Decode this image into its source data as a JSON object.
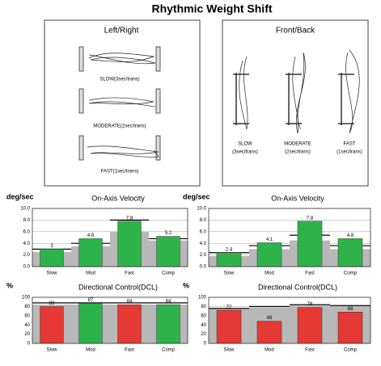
{
  "title": "Rhythmic Weight Shift",
  "panels": [
    {
      "title": "Left/Right",
      "labels": [
        "SLOW(3sec/trans)",
        "MODERATE(2sec/trans)",
        "FAST(1sec/trans)"
      ]
    },
    {
      "title": "Front/Back",
      "labels": [
        [
          "SLOW",
          "(3sec/trans)"
        ],
        [
          "MODERATE",
          "(2sec/trans)"
        ],
        [
          "FAST",
          "(1sec/trans)"
        ]
      ]
    }
  ],
  "chart_data": [
    {
      "type": "bar",
      "title": "On-Axis Velocity",
      "unit": "deg/sec",
      "categories": [
        "Slow",
        "Mod",
        "Fast",
        "Comp"
      ],
      "values": [
        3,
        4.8,
        7.8,
        5.2
      ],
      "colors": [
        "#2db34a",
        "#2db34a",
        "#2db34a",
        "#2db34a"
      ],
      "shaded": [
        2.5,
        3.5,
        6,
        4.5
      ],
      "outline": [
        3,
        4,
        8,
        4.8
      ],
      "ylim": [
        0,
        10
      ],
      "yticks": [
        {
          "value": 0,
          "label": "0.0"
        },
        {
          "value": 2,
          "label": "2.0"
        },
        {
          "value": 4,
          "label": "4.0"
        },
        {
          "value": 6,
          "label": "6.0"
        },
        {
          "value": 8,
          "label": "8.0"
        },
        {
          "value": 10,
          "label": "10.0"
        }
      ]
    },
    {
      "type": "bar",
      "title": "On-Axis Velocity",
      "unit": "deg/sec",
      "categories": [
        "Slow",
        "Mod",
        "Fast",
        "Comp"
      ],
      "values": [
        2.4,
        4.1,
        7.8,
        4.8
      ],
      "colors": [
        "#2db34a",
        "#2db34a",
        "#2db34a",
        "#2db34a"
      ],
      "shaded": [
        1.8,
        3,
        4.5,
        3
      ],
      "outline": [
        2.4,
        3.6,
        5.4,
        3.6
      ],
      "ylim": [
        0,
        10
      ],
      "yticks": [
        {
          "value": 0,
          "label": "0.0"
        },
        {
          "value": 2,
          "label": "2.0"
        },
        {
          "value": 4,
          "label": "4.0"
        },
        {
          "value": 6,
          "label": "6.0"
        },
        {
          "value": 8,
          "label": "8.0"
        },
        {
          "value": 10,
          "label": "10.0"
        }
      ]
    },
    {
      "type": "bar",
      "title": "Directional Control(DCL)",
      "unit": "%",
      "categories": [
        "Slow",
        "Mod",
        "Fast",
        "Comp"
      ],
      "values": [
        80,
        87,
        84,
        84
      ],
      "colors": [
        "#e53935",
        "#2db34a",
        "#e53935",
        "#2db34a"
      ],
      "shaded": [
        84,
        84,
        84,
        84
      ],
      "outline": [
        88,
        88,
        88,
        88
      ],
      "ylim": [
        0,
        100
      ],
      "yticks": [
        0,
        20,
        40,
        60,
        80,
        100
      ]
    },
    {
      "type": "bar",
      "title": "Directional Control(DCL)",
      "unit": "%",
      "categories": [
        "Slow",
        "Mod",
        "Fast",
        "Comp"
      ],
      "values": [
        72,
        48,
        78,
        68
      ],
      "colors": [
        "#e53935",
        "#e53935",
        "#e53935",
        "#e53935"
      ],
      "shaded": [
        76,
        78,
        82,
        80
      ],
      "outline": [
        76,
        80,
        84,
        82
      ],
      "ylim": [
        0,
        100
      ],
      "yticks": [
        0,
        20,
        40,
        60,
        80,
        100
      ]
    }
  ]
}
